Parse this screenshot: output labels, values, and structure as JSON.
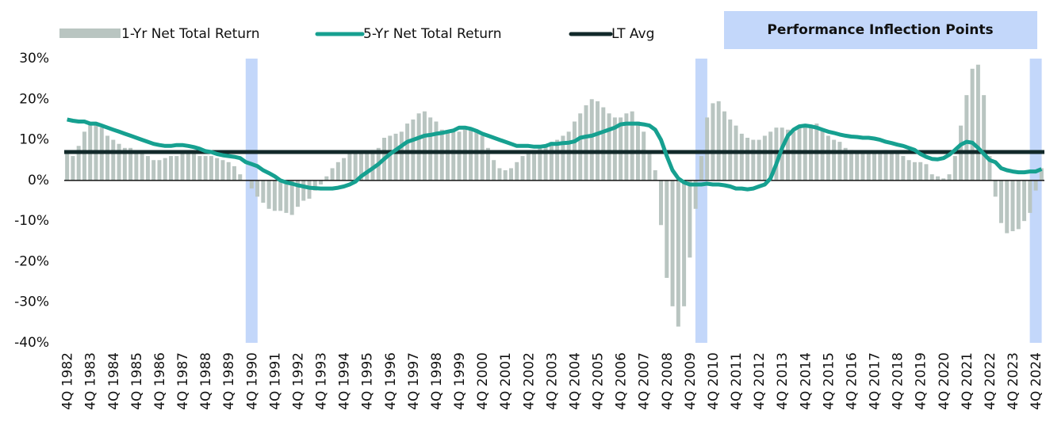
{
  "chart_data": {
    "type": "bar-line",
    "categories": [
      "4Q 1982",
      null,
      null,
      null,
      "4Q 1983",
      null,
      null,
      null,
      "4Q 1984",
      null,
      null,
      null,
      "4Q 1985",
      null,
      null,
      null,
      "4Q 1986",
      null,
      null,
      null,
      "4Q 1987",
      null,
      null,
      null,
      "4Q 1988",
      null,
      null,
      null,
      "4Q 1989",
      null,
      null,
      null,
      "4Q 1990",
      null,
      null,
      null,
      "4Q 1991",
      null,
      null,
      null,
      "4Q 1992",
      null,
      null,
      null,
      "4Q 1993",
      null,
      null,
      null,
      "4Q 1994",
      null,
      null,
      null,
      "4Q 1995",
      null,
      null,
      null,
      "4Q 1996",
      null,
      null,
      null,
      "4Q 1997",
      null,
      null,
      null,
      "4Q 1998",
      null,
      null,
      null,
      "4Q 1999",
      null,
      null,
      null,
      "4Q 2000",
      null,
      null,
      null,
      "4Q 2001",
      null,
      null,
      null,
      "4Q 2002",
      null,
      null,
      null,
      "4Q 2003",
      null,
      null,
      null,
      "4Q 2004",
      null,
      null,
      null,
      "4Q 2005",
      null,
      null,
      null,
      "4Q 2006",
      null,
      null,
      null,
      "4Q 2007",
      null,
      null,
      null,
      "4Q 2008",
      null,
      null,
      null,
      "4Q 2009",
      null,
      null,
      null,
      "4Q 2010",
      null,
      null,
      null,
      "4Q 2011",
      null,
      null,
      null,
      "4Q 2012",
      null,
      null,
      null,
      "4Q 2013",
      null,
      null,
      null,
      "4Q 2014",
      null,
      null,
      null,
      "4Q 2015",
      null,
      null,
      null,
      "4Q 2016",
      null,
      null,
      null,
      "4Q 2017",
      null,
      null,
      null,
      "4Q 2018",
      null,
      null,
      null,
      "4Q 2019",
      null,
      null,
      null,
      "4Q 2020",
      null,
      null,
      null,
      "4Q 2021",
      null,
      null,
      null,
      "4Q 2022",
      null,
      null,
      null,
      "4Q 2023",
      null,
      null,
      null,
      "4Q 2024",
      null
    ],
    "series": [
      {
        "name": "1-Yr Net Total Return",
        "kind": "bar",
        "color": "#b9c5c1",
        "values": [
          7,
          6,
          8.5,
          12,
          14,
          14,
          13,
          11,
          10,
          9,
          8,
          8,
          7,
          6.5,
          6,
          5,
          5,
          5.5,
          6,
          6,
          6.5,
          6.5,
          6.5,
          6,
          6,
          6,
          5.5,
          5,
          4.5,
          3.5,
          1.5,
          0,
          -2,
          -4,
          -5.5,
          -7,
          -7.5,
          -7.5,
          -8,
          -8.5,
          -6.5,
          -5,
          -4.5,
          -2.5,
          -1,
          1,
          3,
          4.5,
          5.5,
          6.5,
          7,
          7,
          7,
          7.5,
          8,
          10.5,
          11,
          11.5,
          12,
          14,
          15,
          16.5,
          17,
          15.5,
          14.5,
          12.5,
          12,
          12,
          12,
          12.5,
          13,
          12,
          11,
          8,
          5,
          3,
          2.5,
          3,
          4.5,
          6,
          7,
          7.5,
          8,
          8.5,
          9.5,
          10,
          11,
          12,
          14.5,
          16.5,
          18.5,
          20,
          19.5,
          18,
          16.5,
          15.5,
          15.5,
          16.5,
          17,
          14.5,
          12,
          7,
          2.5,
          -11,
          -24,
          -31,
          -36,
          -31,
          -19,
          -7,
          6,
          15.5,
          19,
          19.5,
          17,
          15,
          13.5,
          11.5,
          10.5,
          10,
          10,
          11,
          12,
          13,
          13,
          12.5,
          12,
          13,
          13.5,
          13.5,
          14,
          12.5,
          11,
          10,
          9.5,
          8,
          7.5,
          7,
          7,
          7,
          7,
          7,
          7.5,
          7,
          6.5,
          6,
          5,
          4.5,
          4.5,
          4,
          1.5,
          1,
          0.5,
          1.5,
          6,
          13.5,
          21,
          27.5,
          28.5,
          21,
          6,
          -4,
          -10.5,
          -13,
          -12.5,
          -12,
          -10,
          -8,
          -2.5,
          3
        ]
      },
      {
        "name": "5-Yr Net Total Return",
        "kind": "line",
        "color": "#16a090",
        "values": [
          15,
          14.7,
          14.5,
          14.5,
          14,
          14,
          13.5,
          13,
          12.5,
          12,
          11.5,
          11,
          10.5,
          10,
          9.5,
          9,
          8.7,
          8.5,
          8.5,
          8.7,
          8.7,
          8.5,
          8.2,
          7.8,
          7.2,
          7,
          6.5,
          6.2,
          6,
          5.8,
          5.5,
          4.5,
          4,
          3.5,
          2.5,
          1.8,
          1,
          0,
          -0.5,
          -0.8,
          -1.2,
          -1.5,
          -1.8,
          -1.9,
          -2,
          -2,
          -2,
          -1.8,
          -1.5,
          -1,
          -0.3,
          1,
          2,
          3,
          4,
          5.3,
          6.5,
          7.5,
          8.5,
          9.5,
          10,
          10.5,
          11,
          11.2,
          11.5,
          11.7,
          12,
          12.3,
          13,
          13,
          12.7,
          12.2,
          11.5,
          11,
          10.5,
          10,
          9.5,
          9,
          8.5,
          8.5,
          8.5,
          8.3,
          8.3,
          8.5,
          9,
          9,
          9.2,
          9.3,
          9.6,
          10.5,
          10.8,
          11,
          11.5,
          12,
          12.5,
          13,
          13.8,
          14,
          14,
          14,
          13.8,
          13.5,
          12.5,
          10,
          6,
          2.5,
          0.5,
          -0.5,
          -1,
          -1,
          -1,
          -0.8,
          -1,
          -1,
          -1.2,
          -1.5,
          -2,
          -2,
          -2.2,
          -2,
          -1.5,
          -1,
          0.5,
          4,
          8,
          11,
          12.5,
          13.3,
          13.5,
          13.3,
          13,
          12.5,
          12,
          11.7,
          11.3,
          11,
          10.8,
          10.7,
          10.5,
          10.5,
          10.3,
          10,
          9.5,
          9.2,
          8.8,
          8.5,
          8,
          7.5,
          6.5,
          5.8,
          5.3,
          5.2,
          5.5,
          6.3,
          7.5,
          8.8,
          9.5,
          9.3,
          8,
          6.5,
          5,
          4.5,
          3,
          2.5,
          2.2,
          2,
          2,
          2.2,
          2.2,
          2.8
        ]
      }
    ],
    "lt_avg": {
      "name": "LT Avg",
      "color": "#12292a",
      "value": 7
    },
    "inflection_points": {
      "name": "Performance Inflection Points",
      "color": "#c3d7fa",
      "indices": [
        32,
        110,
        168
      ]
    },
    "ylim": [
      -40,
      30
    ],
    "yticks": [
      {
        "value": -40,
        "label": "-40%"
      },
      {
        "value": -30,
        "label": "-30%"
      },
      {
        "value": -20,
        "label": "-20%"
      },
      {
        "value": -10,
        "label": "-10%"
      },
      {
        "value": 0,
        "label": "0%"
      },
      {
        "value": 10,
        "label": "10%"
      },
      {
        "value": 20,
        "label": "20%"
      },
      {
        "value": 30,
        "label": "30%"
      }
    ]
  }
}
